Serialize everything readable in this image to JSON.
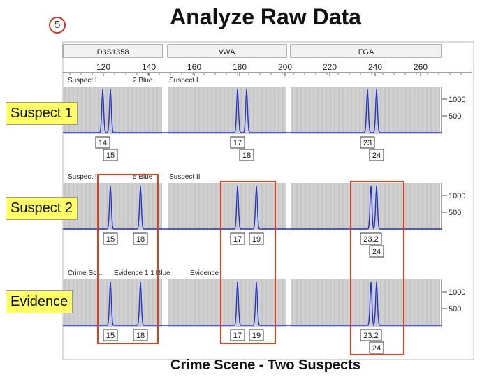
{
  "slide": {
    "number": "5",
    "title": "Analyze Raw Data",
    "caption": "Crime Scene - Two Suspects"
  },
  "loci": [
    "D3S1358",
    "vWA",
    "FGA"
  ],
  "axis_ticks": [
    "120",
    "140",
    "160",
    "180",
    "200",
    "220",
    "240",
    "260"
  ],
  "y_ticks": [
    "1000",
    "500"
  ],
  "colors": {
    "trace": "#2233cc",
    "highlight": "#e04020",
    "label_bg": "#ffff66",
    "panel": "#d0d0d0"
  },
  "panels": [
    {
      "label": "Suspect 1",
      "header_left": "Suspect I",
      "header_mid": "2 Blue",
      "header_right": "Suspect I",
      "alleles": [
        {
          "locus": "D3S1358",
          "value": "14",
          "row": 1
        },
        {
          "locus": "D3S1358",
          "value": "15",
          "row": 2
        },
        {
          "locus": "vWA",
          "value": "17",
          "row": 1
        },
        {
          "locus": "vWA",
          "value": "18",
          "row": 2
        },
        {
          "locus": "FGA",
          "value": "23",
          "row": 1
        },
        {
          "locus": "FGA",
          "value": "24",
          "row": 2
        }
      ]
    },
    {
      "label": "Suspect 2",
      "header_left": "Suspect II",
      "header_mid": "5 Blue",
      "header_right": "Suspect II",
      "alleles": [
        {
          "locus": "D3S1358",
          "value": "15",
          "row": 1
        },
        {
          "locus": "D3S1358",
          "value": "18",
          "row": 1
        },
        {
          "locus": "vWA",
          "value": "17",
          "row": 1
        },
        {
          "locus": "vWA",
          "value": "19",
          "row": 1
        },
        {
          "locus": "FGA",
          "value": "23.2",
          "row": 1
        },
        {
          "locus": "FGA",
          "value": "24",
          "row": 2
        }
      ]
    },
    {
      "label": "Evidence",
      "header_left": "Crime Sc...",
      "header_mid": "Evidence 1 1 Blue",
      "header_right": "Evidence",
      "alleles": [
        {
          "locus": "D3S1358",
          "value": "15",
          "row": 1
        },
        {
          "locus": "D3S1358",
          "value": "18",
          "row": 1
        },
        {
          "locus": "vWA",
          "value": "17",
          "row": 1
        },
        {
          "locus": "vWA",
          "value": "19",
          "row": 1
        },
        {
          "locus": "FGA",
          "value": "23.2",
          "row": 1
        },
        {
          "locus": "FGA",
          "value": "24",
          "row": 2
        }
      ]
    }
  ]
}
